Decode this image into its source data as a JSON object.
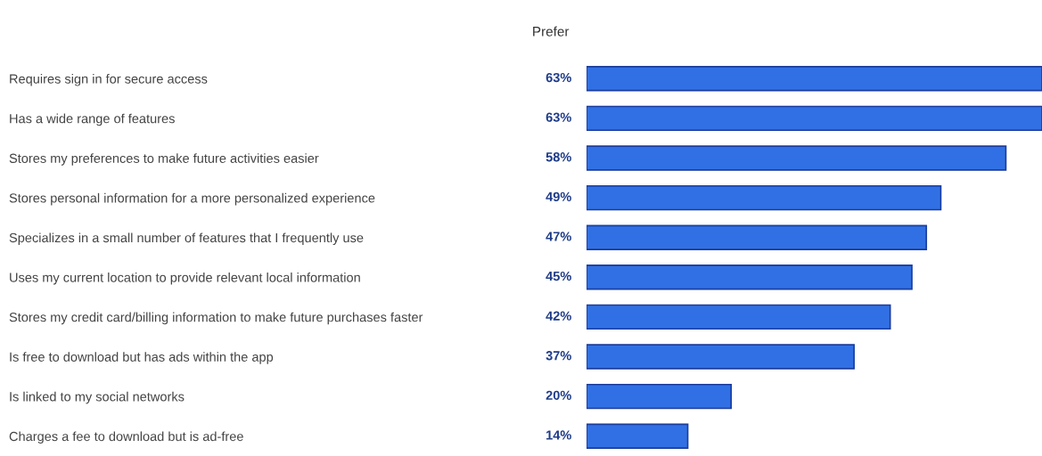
{
  "chart_data": {
    "type": "bar",
    "orientation": "horizontal",
    "title": "Prefer",
    "categories": [
      "Requires sign in for secure access",
      "Has a wide range of features",
      "Stores my preferences to make future activities easier",
      "Stores personal information for a more personalized experience",
      "Specializes in a small number of features that I frequently use",
      "Uses my current location to provide relevant local information",
      "Stores my credit card/billing information to make future purchases faster",
      "Is free to download but has ads within the app",
      "Is linked to my social networks",
      "Charges a fee to download but is ad-free"
    ],
    "values": [
      63,
      63,
      58,
      49,
      47,
      45,
      42,
      37,
      20,
      14
    ],
    "value_labels": [
      "63%",
      "63%",
      "58%",
      "49%",
      "47%",
      "45%",
      "42%",
      "37%",
      "20%",
      "14%"
    ],
    "color": "#3170e4",
    "xlim": [
      0,
      63
    ],
    "tick_labels": "y",
    "grid": false,
    "legend": false
  }
}
